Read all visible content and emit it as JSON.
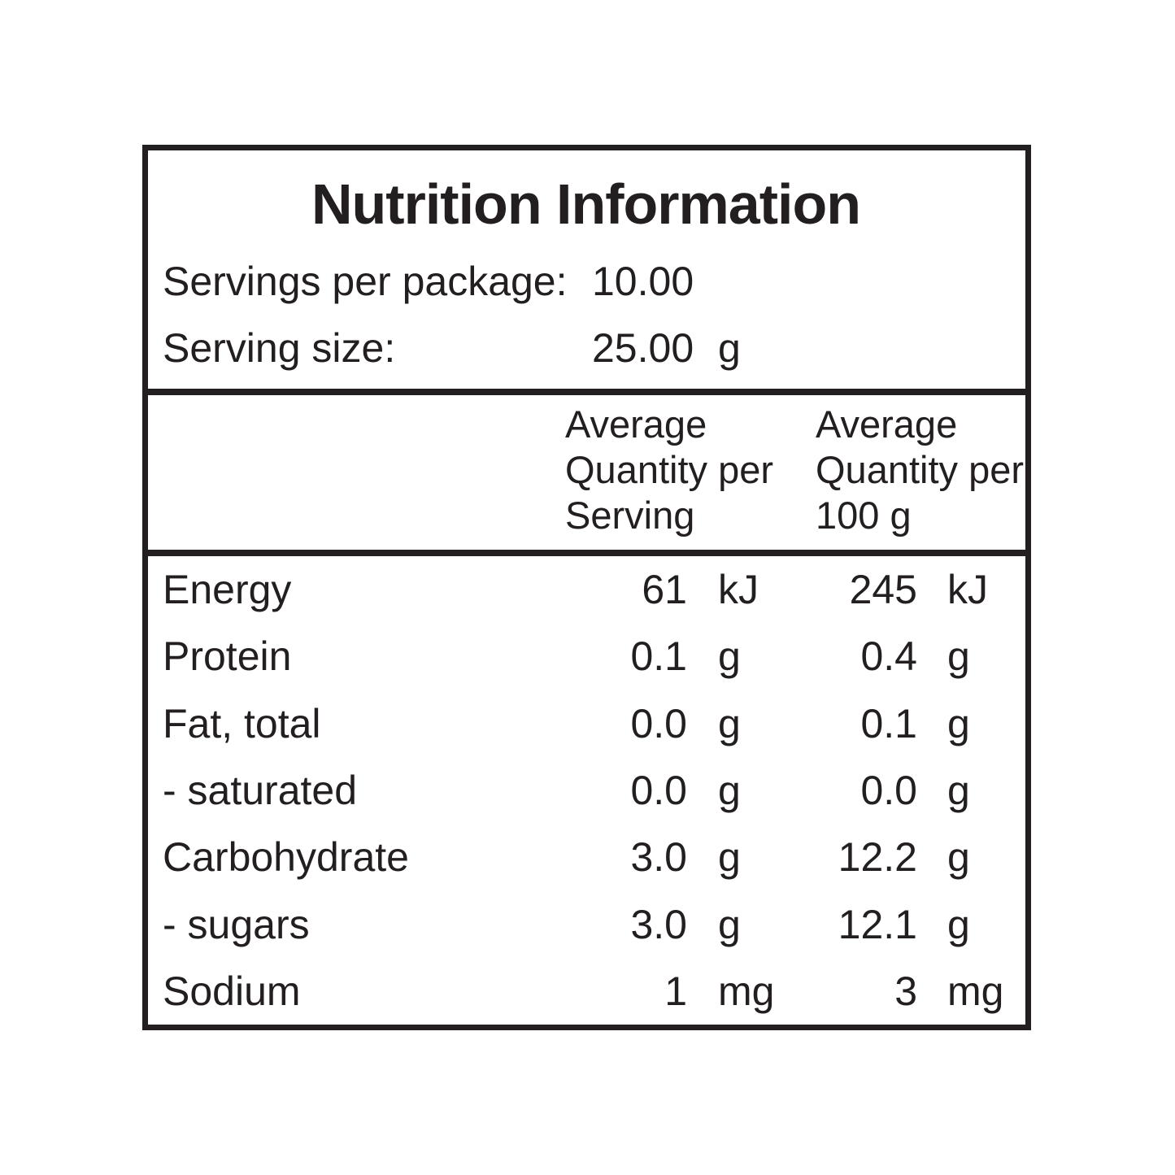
{
  "panel": {
    "title": "Nutrition Information",
    "ink_color": "#231f20",
    "background_color": "#ffffff",
    "serving_info": {
      "servings_per_package": {
        "label": "Servings per package:",
        "value": "10.00",
        "unit": ""
      },
      "serving_size": {
        "label": "Serving size:",
        "value": "25.00",
        "unit": "g"
      }
    },
    "column_headers": {
      "per_serving": "Average\nQuantity per\nServing",
      "per_100g": "Average\nQuantity per\n100 g"
    },
    "rows": [
      {
        "name": "Energy",
        "per_serving": "61",
        "per_serving_unit": "kJ",
        "per_100g": "245",
        "per_100g_unit": "kJ"
      },
      {
        "name": "Protein",
        "per_serving": "0.1",
        "per_serving_unit": "g",
        "per_100g": "0.4",
        "per_100g_unit": "g"
      },
      {
        "name": "Fat, total",
        "per_serving": "0.0",
        "per_serving_unit": "g",
        "per_100g": "0.1",
        "per_100g_unit": "g"
      },
      {
        "name": "- saturated",
        "per_serving": "0.0",
        "per_serving_unit": "g",
        "per_100g": "0.0",
        "per_100g_unit": "g"
      },
      {
        "name": "Carbohydrate",
        "per_serving": "3.0",
        "per_serving_unit": "g",
        "per_100g": "12.2",
        "per_100g_unit": "g"
      },
      {
        "name": "- sugars",
        "per_serving": "3.0",
        "per_serving_unit": "g",
        "per_100g": "12.1",
        "per_100g_unit": "g"
      },
      {
        "name": "Sodium",
        "per_serving": "1",
        "per_serving_unit": "mg",
        "per_100g": "3",
        "per_100g_unit": "mg"
      }
    ]
  }
}
